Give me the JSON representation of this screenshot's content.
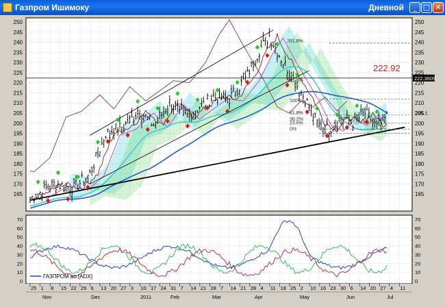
{
  "window": {
    "title": "Газпром Ишимоку",
    "period_label": "Дневной",
    "minimize_glyph": "_",
    "maximize_glyph": "□",
    "close_glyph": "✕"
  },
  "price_panel": {
    "y_ticks": [
      250,
      245,
      240,
      235,
      230,
      225,
      220,
      215,
      210,
      205,
      200,
      195,
      190,
      185,
      180,
      175,
      170,
      165
    ],
    "last_price_label": "222.92",
    "level_label_right": "222.3609",
    "current_label": "205.1",
    "fib_labels": [
      "261.8%",
      "161.8%",
      "100%",
      "61.8%",
      "38.2%",
      "23.6%",
      "0%"
    ]
  },
  "indicator_panel": {
    "y_ticks": [
      70,
      60,
      50,
      40,
      30,
      20,
      10,
      0
    ],
    "legend": "ГАЗПРОМ ао [ADX]"
  },
  "time_axis": {
    "day_labels": [
      "25",
      "1",
      "8",
      "15",
      "22",
      "29",
      "6",
      "13",
      "20",
      "27",
      "3",
      "10",
      "17",
      "24",
      "31",
      "7",
      "14",
      "21",
      "28",
      "7",
      "14",
      "21",
      "28",
      "4",
      "11",
      "18",
      "25",
      "2",
      "10",
      "16",
      "23",
      "30",
      "6",
      "14",
      "20",
      "27",
      "4",
      "11"
    ],
    "month_labels": [
      "Nov",
      "Dec",
      "2011",
      "Feb",
      "Mar",
      "Apr",
      "May",
      "Jun",
      "Jul"
    ]
  },
  "colors": {
    "price_bars": "#000000",
    "kumo_green": "#5ccf5c",
    "kumo_cyan": "#5fd8e0",
    "tenkan": "#8b1a1a",
    "kijun": "#c040c0",
    "chikou": "#8b3a3a",
    "ma_blue": "#1a5fd0",
    "ma_cyan": "#30c8e0",
    "channel": "#000000",
    "fractal_up": "#22cc22",
    "fractal_down": "#dd1111",
    "last_price_text": "#cc2222",
    "adx": "#2244bb",
    "di_plus": "#33bb55",
    "di_minus": "#aa3355"
  }
}
